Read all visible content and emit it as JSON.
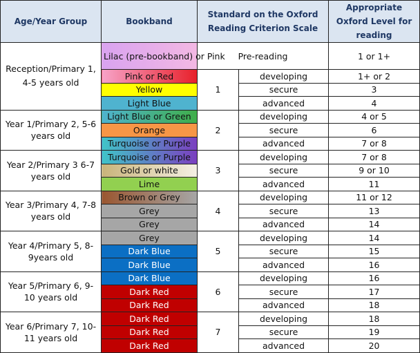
{
  "header": [
    "Age/Year Group",
    "Bookband",
    "Standard on the Oxford Reading Criterion Scale",
    "Appropriate Oxford Level for reading"
  ],
  "groups": [
    {
      "age": "Reception/Primary 1, 4-5 years old",
      "pre": {
        "band": "Lilac (pre-bookband) or Pink",
        "color": [
          "#d9a3f0",
          "#f3b8e3"
        ],
        "standard": "Pre-reading",
        "level": "1 or 1+"
      },
      "stage": "1",
      "rows": [
        {
          "band": "Pink or Red",
          "color": [
            "#f7a3c8",
            "#e8202a"
          ],
          "standard": "developing",
          "level": "1+ or 2"
        },
        {
          "band": "Yellow",
          "color": [
            "#ffff00"
          ],
          "standard": "secure",
          "level": "3"
        },
        {
          "band": "Light Blue",
          "color": [
            "#4fb3cf"
          ],
          "standard": "advanced",
          "level": "4"
        }
      ]
    },
    {
      "age": "Year 1/Primary 2, 5-6 years old",
      "stage": "2",
      "rows": [
        {
          "band": "Light Blue or Green",
          "color": [
            "#4fb3cf",
            "#3fae49"
          ],
          "standard": "developing",
          "level": "4 or 5"
        },
        {
          "band": "Orange",
          "color": [
            "#f79646"
          ],
          "standard": "secure",
          "level": "6"
        },
        {
          "band": "Turquoise or Purple",
          "color": [
            "#40c4c8",
            "#7b3fc0"
          ],
          "standard": "advanced",
          "level": "7 or 8"
        }
      ]
    },
    {
      "age": "Year 2/Primary 3 6-7 years old",
      "stage": "3",
      "rows": [
        {
          "band": "Turquoise or Purple",
          "color": [
            "#40c4c8",
            "#7b3fc0"
          ],
          "standard": "developing",
          "level": "7 or 8"
        },
        {
          "band": "Gold or white",
          "color": [
            "#c9b47a",
            "#f4f0e4"
          ],
          "standard": "secure",
          "level": "9 or 10"
        },
        {
          "band": "Lime",
          "color": [
            "#92d050"
          ],
          "standard": "advanced",
          "level": "11"
        }
      ]
    },
    {
      "age": "Year 3/Primary 4, 7-8 years old",
      "stage": "4",
      "rows": [
        {
          "band": "Brown or Grey",
          "color": [
            "#9a5630",
            "#a6a6a6"
          ],
          "standard": "developing",
          "level": "11 or 12"
        },
        {
          "band": "Grey",
          "color": [
            "#a6a6a6"
          ],
          "standard": "secure",
          "level": "13"
        },
        {
          "band": "Grey",
          "color": [
            "#a6a6a6"
          ],
          "standard": "advanced",
          "level": "14"
        }
      ]
    },
    {
      "age": "Year 4/Primary 5, 8-9years old",
      "stage": "5",
      "rows": [
        {
          "band": "Grey",
          "color": [
            "#a6a6a6"
          ],
          "standard": "developing",
          "level": "14"
        },
        {
          "band": "Dark Blue",
          "color": [
            "#0b6fc4"
          ],
          "standard": "secure",
          "level": "15"
        },
        {
          "band": "Dark Blue",
          "color": [
            "#0b6fc4"
          ],
          "standard": "advanced",
          "level": "16"
        }
      ]
    },
    {
      "age": "Year 5/Primary 6, 9-10 years old",
      "stage": "6",
      "rows": [
        {
          "band": "Dark Blue",
          "color": [
            "#0b6fc4"
          ],
          "standard": "developing",
          "level": "16"
        },
        {
          "band": "Dark Red",
          "color": [
            "#c00000"
          ],
          "standard": "secure",
          "level": "17"
        },
        {
          "band": "Dark Red",
          "color": [
            "#c00000"
          ],
          "standard": "advanced",
          "level": "18"
        }
      ]
    },
    {
      "age": "Year 6/Primary 7, 10-11 years old",
      "stage": "7",
      "rows": [
        {
          "band": "Dark Red",
          "color": [
            "#c00000"
          ],
          "standard": "developing",
          "level": "18"
        },
        {
          "band": "Dark Red",
          "color": [
            "#c00000"
          ],
          "standard": "secure",
          "level": "19"
        },
        {
          "band": "Dark Red",
          "color": [
            "#c00000"
          ],
          "standard": "advanced",
          "level": "20"
        }
      ]
    }
  ]
}
